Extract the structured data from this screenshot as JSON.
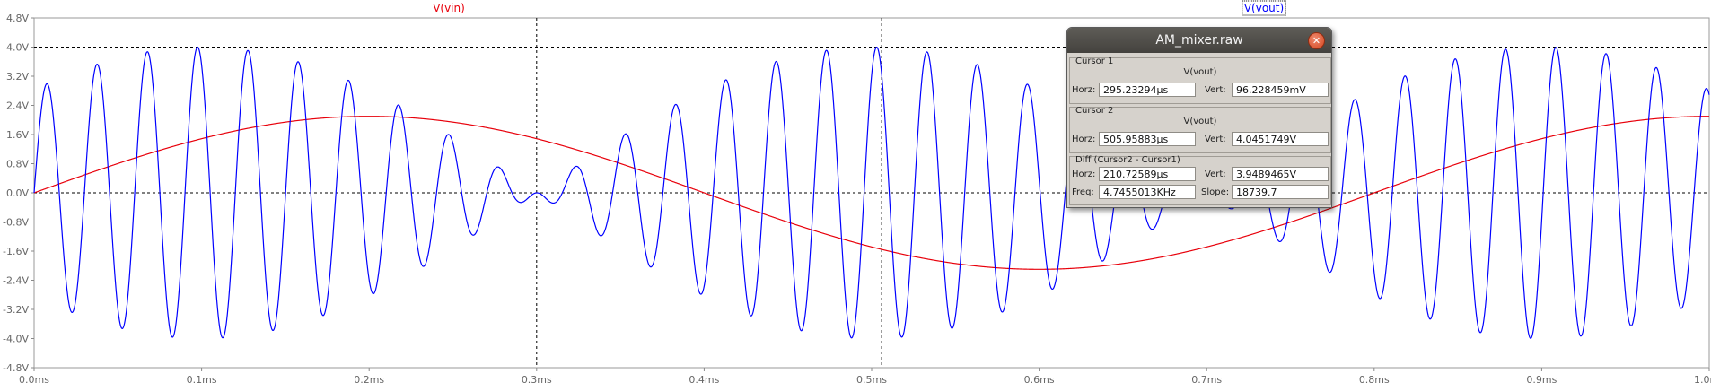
{
  "chart_data": {
    "type": "line",
    "xlabel": "",
    "ylabel": "",
    "xlim": [
      0,
      1.0
    ],
    "ylim": [
      -4.8,
      4.8
    ],
    "x_unit": "ms",
    "x_ticks": [
      0.0,
      0.1,
      0.2,
      0.3,
      0.4,
      0.5,
      0.6,
      0.7,
      0.8,
      0.9,
      1.0
    ],
    "x_tick_labels": [
      "0.0ms",
      "0.1ms",
      "0.2ms",
      "0.3ms",
      "0.4ms",
      "0.5ms",
      "0.6ms",
      "0.7ms",
      "0.8ms",
      "0.9ms",
      "1.0ms"
    ],
    "y_ticks": [
      4.8,
      4.0,
      3.2,
      2.4,
      1.6,
      0.8,
      0.0,
      -0.8,
      -1.6,
      -2.4,
      -3.2,
      -4.0,
      -4.8
    ],
    "y_tick_labels": [
      "4.8V",
      "4.0V",
      "3.2V",
      "2.4V",
      "1.6V",
      "0.8V",
      "0.0V",
      "-0.8V",
      "-1.6V",
      "-2.4V",
      "-3.2V",
      "-4.0V",
      "-4.8V"
    ],
    "grid": false,
    "reference_lines_y": [
      4.0,
      0.0
    ],
    "series": [
      {
        "name": "V(vin)",
        "color": "#e8000b",
        "kind": "sine",
        "amplitude_v": 2.1,
        "frequency_khz": 1.25,
        "phase_deg": 0
      },
      {
        "name": "V(vout)",
        "color": "#0000ff",
        "kind": "am_product",
        "carrier_frequency_khz": 33.3,
        "envelope_peak_v": 4.0,
        "envelope_frequency_khz": 1.25,
        "envelope_zeros_ms": [
          0.3,
          0.7
        ]
      }
    ],
    "cursors": [
      {
        "name": "Cursor 1",
        "x_ms": 0.3,
        "style": "dashed"
      },
      {
        "name": "Cursor 2",
        "x_ms": 0.505958,
        "style": "dashed"
      }
    ]
  },
  "dialog": {
    "title": "AM_mixer.raw",
    "close_icon": "close-icon",
    "cursor1": {
      "group_title": "Cursor 1",
      "trace": "V(vout)",
      "horz_label": "Horz:",
      "horz_value": "295.23294µs",
      "vert_label": "Vert:",
      "vert_value": "96.228459mV"
    },
    "cursor2": {
      "group_title": "Cursor 2",
      "trace": "V(vout)",
      "horz_label": "Horz:",
      "horz_value": "505.95883µs",
      "vert_label": "Vert:",
      "vert_value": "4.0451749V"
    },
    "diff": {
      "group_title": "Diff (Cursor2 - Cursor1)",
      "horz_label": "Horz:",
      "horz_value": "210.72589µs",
      "vert_label": "Vert:",
      "vert_value": "3.9489465V",
      "freq_label": "Freq:",
      "freq_value": "4.7455013KHz",
      "slope_label": "Slope:",
      "slope_value": "18739.7"
    }
  }
}
